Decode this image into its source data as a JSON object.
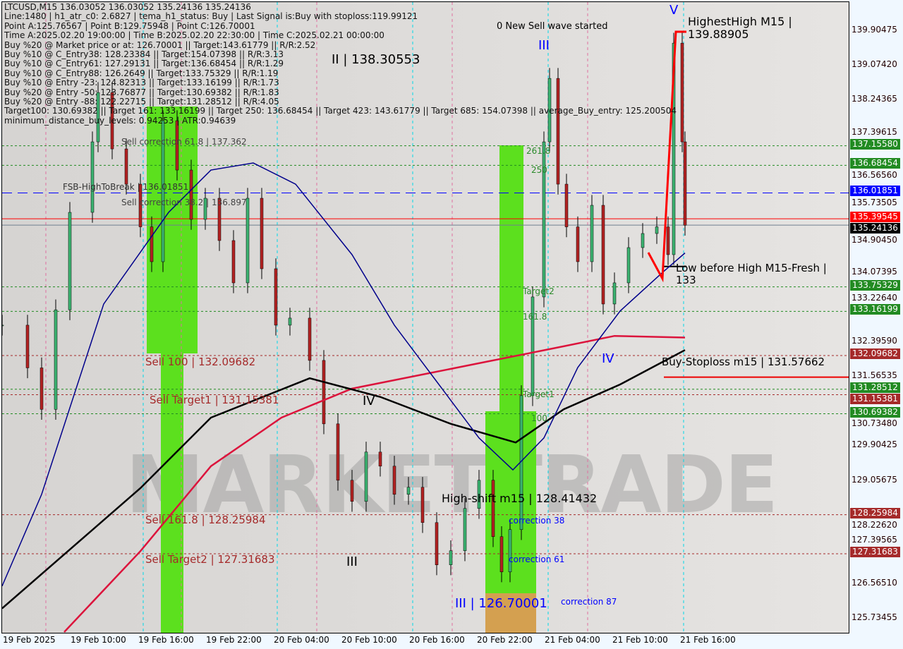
{
  "header": {
    "symbol_line": "LTCUSD,M15  136.03052 136.03052 135.24136 135.24136",
    "lines": [
      "Line:1480 | h1_atr_c0: 2.6827 | tema_h1_status: Buy | Last Signal is:Buy with stoploss:119.99121",
      "Point A:125.76567 | Point B:129.75948 | Point C:126.70001",
      "Time A:2025.02.20 19:00:00 | Time B:2025.02.20 22:30:00 | Time C:2025.02.21 00:00:00",
      "Buy %20 @ Market price or at: 126.70001 || Target:143.61779 || R/R:2.52",
      "Buy %10 @ C_Entry38: 128.23384 || Target:154.07398 || R/R:3.13",
      "Buy %10 @ C_Entry61: 127.29131 || Target:136.68454 || R/R:1.29",
      "Buy %10 @ C_Entry88: 126.2649 || Target:133.75329 || R/R:1.19",
      "Buy %10 @ Entry -23: 124.82313 || Target:133.16199 || R/R:1.73",
      "Buy %20 @ Entry -50: 123.76877 || Target:130.69382 || R/R:1.83",
      "Buy %20 @ Entry -88: 122.22715 || Target:131.28512 || R/R:4.05",
      "Target100: 130.69382 || Target 161: 133.16199 || Target 250: 136.68454 || Target 423: 143.61779 || Target 685: 154.07398 || average_Buy_entry: 125.200504",
      "minimum_distance_buy_levels: 0.94253 | ATR:0.94639"
    ]
  },
  "watermark": "MARKETTRADE",
  "labels": {
    "wave_started": "0 New Sell wave started",
    "highest_high": "HighestHigh   M15 | 139.88905",
    "low_before_high": "Low before High   M15-Fresh | 133",
    "buy_stoploss": "Buy-Stoploss m15 | 131.57662",
    "sell100": "Sell 100 | 132.09682",
    "sell_target1": "Sell Target1 | 131.15381",
    "sell161": "Sell 161.8 | 128.25984",
    "sell_target2": "Sell Target2 | 127.31683",
    "high_shift": "High-shift m15 | 128.41432",
    "fsb": "FSB-HighToBreak | 136.01851",
    "sell_corr618": "Sell correction 61.8 | 137.362",
    "sell_corr382": "Sell correction 38.2 | 136.897",
    "wave_ii": "II | 138.30553",
    "wave_iii_low": "III | 126.70001",
    "corr38": "correction 38",
    "corr61": "correction 61",
    "corr87": "correction 87",
    "w_v": "V",
    "w_iii": "III",
    "w_iv": "IV",
    "w_iv2": "IV",
    "w_iii2": "III",
    "t2618": "261.8",
    "t250": "250",
    "target2": "Target2",
    "t618": "161.8",
    "target1": "Target1",
    "t100": "100"
  },
  "chart_data": {
    "type": "candlestick",
    "symbol": "LTCUSD",
    "timeframe": "M15",
    "ylim": [
      125.3,
      140.6
    ],
    "yticks": [
      139.90475,
      139.0742,
      138.24365,
      137.39615,
      136.5656,
      135.73505,
      134.9045,
      134.07395,
      133.2264,
      132.3959,
      131.56535,
      130.7348,
      129.90425,
      129.05675,
      128.2262,
      127.39565,
      126.5651,
      125.73455
    ],
    "xticks": [
      "19 Feb 2025",
      "19 Feb 10:00",
      "19 Feb 16:00",
      "19 Feb 22:00",
      "20 Feb 04:00",
      "20 Feb 10:00",
      "20 Feb 16:00",
      "20 Feb 22:00",
      "21 Feb 04:00",
      "21 Feb 10:00",
      "21 Feb 16:00"
    ],
    "price": [
      [
        "19 04:00",
        132.83
      ],
      [
        "19 06:15",
        131.8
      ],
      [
        "19 07:30",
        130.8
      ],
      [
        "19 08:45",
        133.2
      ],
      [
        "19 10:00",
        135.55
      ],
      [
        "19 12:00",
        137.25
      ],
      [
        "19 12:30",
        138.44
      ],
      [
        "19 13:45",
        137.08
      ],
      [
        "19 15:00",
        136.23
      ],
      [
        "19 16:15",
        135.2
      ],
      [
        "19 17:15",
        134.36
      ],
      [
        "19 18:15",
        137.76
      ],
      [
        "19 19:30",
        136.57
      ],
      [
        "19 20:45",
        135.38
      ],
      [
        "19 22:00",
        135.89
      ],
      [
        "19 23:15",
        134.87
      ],
      [
        "20 00:30",
        133.85
      ],
      [
        "20 01:45",
        135.89
      ],
      [
        "20 03:00",
        134.19
      ],
      [
        "20 04:15",
        132.83
      ],
      [
        "20 05:30",
        133.0
      ],
      [
        "20 07:15",
        131.98
      ],
      [
        "20 08:30",
        130.45
      ],
      [
        "20 09:45",
        129.09
      ],
      [
        "20 11:00",
        128.58
      ],
      [
        "20 12:15",
        129.77
      ],
      [
        "20 13:30",
        129.43
      ],
      [
        "20 14:45",
        128.75
      ],
      [
        "20 16:00",
        128.92
      ],
      [
        "20 17:15",
        128.07
      ],
      [
        "20 18:30",
        127.05
      ],
      [
        "20 19:45",
        127.39
      ],
      [
        "20 21:00",
        128.41
      ],
      [
        "20 22:15",
        129.09
      ],
      [
        "20 23:30",
        127.73
      ],
      [
        "21 00:15",
        126.88
      ],
      [
        "21 01:00",
        127.9
      ],
      [
        "21 02:00",
        131.13
      ],
      [
        "21 03:00",
        133.51
      ],
      [
        "21 04:00",
        137.25
      ],
      [
        "21 04:30",
        138.78
      ],
      [
        "21 05:15",
        136.23
      ],
      [
        "21 06:00",
        135.2
      ],
      [
        "21 07:00",
        134.36
      ],
      [
        "21 08:15",
        135.72
      ],
      [
        "21 09:15",
        133.34
      ],
      [
        "21 10:15",
        133.85
      ],
      [
        "21 11:30",
        134.7
      ],
      [
        "21 12:45",
        135.04
      ],
      [
        "21 14:00",
        135.2
      ],
      [
        "21 15:00",
        134.53
      ],
      [
        "21 15:30",
        139.63
      ],
      [
        "21 16:15",
        137.25
      ],
      [
        "21 16:30",
        135.24
      ]
    ],
    "ma_blue": [
      [
        "19 04:00",
        126.54
      ],
      [
        "19 07:30",
        128.75
      ],
      [
        "19 13:00",
        133.34
      ],
      [
        "19 18:45",
        135.55
      ],
      [
        "19 22:30",
        136.57
      ],
      [
        "20 02:15",
        136.74
      ],
      [
        "20 06:00",
        136.23
      ],
      [
        "20 11:00",
        134.53
      ],
      [
        "20 14:45",
        132.83
      ],
      [
        "20 18:30",
        131.47
      ],
      [
        "20 22:15",
        130.11
      ],
      [
        "21 01:15",
        129.34
      ],
      [
        "21 04:00",
        130.11
      ],
      [
        "21 07:00",
        131.81
      ],
      [
        "21 10:45",
        133.17
      ],
      [
        "21 14:30",
        134.1
      ],
      [
        "21 16:30",
        134.57
      ]
    ],
    "ma_black": [
      [
        "19 04:00",
        126.0
      ],
      [
        "19 16:15",
        128.9
      ],
      [
        "19 22:30",
        130.6
      ],
      [
        "20 07:15",
        131.55
      ],
      [
        "20 13:30",
        131.1
      ],
      [
        "20 19:45",
        130.45
      ],
      [
        "21 01:30",
        130.0
      ],
      [
        "21 05:45",
        130.8
      ],
      [
        "21 10:45",
        131.4
      ],
      [
        "21 16:30",
        132.23
      ]
    ],
    "ma_crimson": [
      [
        "19 09:30",
        125.43
      ],
      [
        "19 16:15",
        127.38
      ],
      [
        "19 22:30",
        129.43
      ],
      [
        "20 04:45",
        130.6
      ],
      [
        "20 11:00",
        131.3
      ],
      [
        "20 17:15",
        131.64
      ],
      [
        "20 23:30",
        131.98
      ],
      [
        "21 05:45",
        132.32
      ],
      [
        "21 10:15",
        132.57
      ],
      [
        "21 16:30",
        132.53
      ]
    ],
    "levels": [
      {
        "price": 137.1558,
        "label": "137.15580",
        "color": "#228b22"
      },
      {
        "price": 136.68454,
        "label": "136.68454",
        "color": "#228b22"
      },
      {
        "price": 136.01851,
        "label": "136.01851",
        "color": "#0000ff"
      },
      {
        "price": 135.39545,
        "label": "135.39545",
        "color": "#ff0000"
      },
      {
        "price": 135.24136,
        "label": "135.24136",
        "color": "#000000"
      },
      {
        "price": 133.75329,
        "label": "133.75329",
        "color": "#228b22"
      },
      {
        "price": 133.16199,
        "label": "133.16199",
        "color": "#228b22"
      },
      {
        "price": 132.09682,
        "label": "132.09682",
        "color": "#a52a2a"
      },
      {
        "price": 131.28512,
        "label": "131.28512",
        "color": "#228b22"
      },
      {
        "price": 131.15381,
        "label": "131.15381",
        "color": "#a52a2a"
      },
      {
        "price": 130.69382,
        "label": "130.69382",
        "color": "#228b22"
      },
      {
        "price": 128.25984,
        "label": "128.25984",
        "color": "#a52a2a"
      },
      {
        "price": 127.31683,
        "label": "127.31683",
        "color": "#a52a2a"
      }
    ]
  }
}
